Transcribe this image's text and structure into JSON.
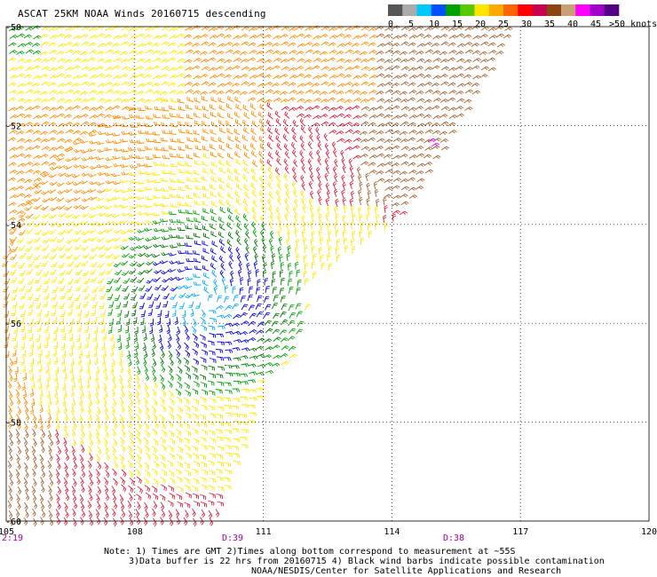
{
  "title": "ASCAT 25KM NOAA Winds 20160715 descending",
  "legend": {
    "ticks": [
      "0",
      "5",
      "10",
      "15",
      "20",
      "25",
      "30",
      "35",
      "40",
      "45",
      ">50 knots"
    ],
    "colors": [
      "#555555",
      "#aaaaaa",
      "#00c8ff",
      "#0050ff",
      "#00a000",
      "#5ac800",
      "#ffe600",
      "#ffaa00",
      "#ff6400",
      "#ff0000",
      "#c80050",
      "#8b4513",
      "#c8a078",
      "#ff00ff",
      "#a000c8",
      "#500080"
    ]
  },
  "axes": {
    "lon_labels": [
      "105",
      "108",
      "111",
      "114",
      "117",
      "120"
    ],
    "lat_labels": [
      "-50",
      "-52",
      "-54",
      "-56",
      "-58",
      "-60"
    ]
  },
  "time_labels": [
    {
      "text": "2:19",
      "color": "#a000a0"
    },
    {
      "text": "D:39",
      "color": "#a000a0"
    },
    {
      "text": "D:38",
      "color": "#a000a0"
    }
  ],
  "notes": {
    "line1": "Note: 1) Times are GMT 2)Times along bottom correspond to measurement at ~55S",
    "line2": "3)Data buffer is 22 hrs from 20160715 4) Black wind barbs indicate possible contamination",
    "line3": "NOAA/NESDIS/Center for Satellite Applications and Research"
  },
  "map": {
    "lon_range": [
      105,
      120
    ],
    "lat_range": [
      -60,
      -50
    ],
    "wind_colors": {
      "pale_yellow": "#ffe600",
      "orange": "#ff8c00",
      "red": "#dc1e3c",
      "brown": "#a06432",
      "green": "#00a000",
      "dark_green": "#007800",
      "blue": "#0000dc",
      "cyan": "#00aaff",
      "magenta": "#ff00ff"
    }
  }
}
